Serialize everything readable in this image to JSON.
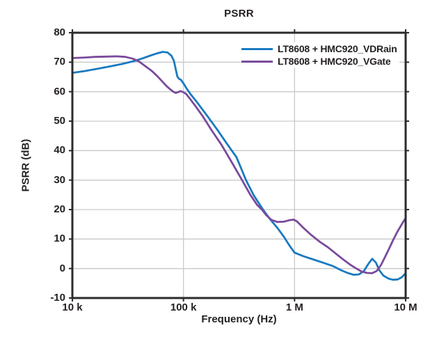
{
  "chart_data": {
    "type": "line",
    "title": "PSRR",
    "xlabel": "Frequency (Hz)",
    "ylabel": "PSRR (dB)",
    "x_scale": "log",
    "x_range": [
      10000,
      10000000
    ],
    "y_range": [
      -10,
      80
    ],
    "grid": true,
    "legend_position": "top-right-inside",
    "axis_color": "#2b2b2b",
    "grid_color": "#c9c9c9",
    "x_ticks": [
      {
        "value": 10000,
        "label": "10 k"
      },
      {
        "value": 100000,
        "label": "100 k"
      },
      {
        "value": 1000000,
        "label": "1 M"
      },
      {
        "value": 10000000,
        "label": "10 M"
      }
    ],
    "y_ticks": [
      {
        "value": 80,
        "label": "80"
      },
      {
        "value": 70,
        "label": "70"
      },
      {
        "value": 60,
        "label": "60"
      },
      {
        "value": 50,
        "label": "50"
      },
      {
        "value": 40,
        "label": "40"
      },
      {
        "value": 30,
        "label": "30"
      },
      {
        "value": 20,
        "label": "20"
      },
      {
        "value": 10,
        "label": "10"
      },
      {
        "value": 0,
        "label": "0"
      },
      {
        "value": -10,
        "label": "-10"
      }
    ],
    "series": [
      {
        "name": "LT8608 + HMC920_VDRain",
        "color": "#1a7ac0",
        "points": [
          [
            10000,
            66.4
          ],
          [
            13000,
            67.0
          ],
          [
            17000,
            67.8
          ],
          [
            22000,
            68.6
          ],
          [
            28000,
            69.4
          ],
          [
            35000,
            70.3
          ],
          [
            42000,
            71.2
          ],
          [
            50000,
            72.2
          ],
          [
            58000,
            73.0
          ],
          [
            65000,
            73.5
          ],
          [
            72000,
            73.3
          ],
          [
            78000,
            72.2
          ],
          [
            82000,
            70.5
          ],
          [
            85000,
            67.8
          ],
          [
            88000,
            65.2
          ],
          [
            91000,
            64.4
          ],
          [
            95000,
            64.0
          ],
          [
            100000,
            62.8
          ],
          [
            107000,
            61.0
          ],
          [
            115000,
            59.3
          ],
          [
            130000,
            56.8
          ],
          [
            160000,
            52.3
          ],
          [
            200000,
            47.3
          ],
          [
            250000,
            42.0
          ],
          [
            300000,
            37.8
          ],
          [
            366000,
            30.0
          ],
          [
            430000,
            24.8
          ],
          [
            520000,
            20.0
          ],
          [
            600000,
            16.8
          ],
          [
            700000,
            13.8
          ],
          [
            800000,
            10.8
          ],
          [
            900000,
            7.8
          ],
          [
            1000000,
            5.4
          ],
          [
            1200000,
            4.2
          ],
          [
            1500000,
            3.0
          ],
          [
            1800000,
            2.0
          ],
          [
            2200000,
            0.9
          ],
          [
            2600000,
            -0.5
          ],
          [
            3000000,
            -1.5
          ],
          [
            3400000,
            -2.1
          ],
          [
            3800000,
            -2.0
          ],
          [
            4200000,
            -0.9
          ],
          [
            4600000,
            1.5
          ],
          [
            5000000,
            3.3
          ],
          [
            5400000,
            2.0
          ],
          [
            5800000,
            -0.6
          ],
          [
            6300000,
            -2.4
          ],
          [
            7000000,
            -3.4
          ],
          [
            7700000,
            -3.8
          ],
          [
            8500000,
            -3.7
          ],
          [
            9200000,
            -3.0
          ],
          [
            10000000,
            -1.6
          ]
        ]
      },
      {
        "name": "LT8608 + HMC920_VGate",
        "color": "#7a4a9c",
        "points": [
          [
            10000,
            71.4
          ],
          [
            13000,
            71.6
          ],
          [
            16000,
            71.8
          ],
          [
            20000,
            71.9
          ],
          [
            25000,
            72.0
          ],
          [
            30000,
            71.8
          ],
          [
            35000,
            71.2
          ],
          [
            40000,
            70.2
          ],
          [
            46000,
            68.5
          ],
          [
            52000,
            67.0
          ],
          [
            58000,
            65.3
          ],
          [
            64000,
            63.6
          ],
          [
            70000,
            62.0
          ],
          [
            76000,
            60.8
          ],
          [
            81000,
            60.0
          ],
          [
            85000,
            59.6
          ],
          [
            89000,
            59.8
          ],
          [
            94000,
            60.2
          ],
          [
            100000,
            59.8
          ],
          [
            106000,
            59.2
          ],
          [
            115000,
            57.5
          ],
          [
            130000,
            54.8
          ],
          [
            150000,
            51.5
          ],
          [
            180000,
            46.8
          ],
          [
            220000,
            42.0
          ],
          [
            270000,
            36.3
          ],
          [
            337000,
            30.0
          ],
          [
            400000,
            25.0
          ],
          [
            460000,
            21.6
          ],
          [
            508000,
            20.0
          ],
          [
            560000,
            18.0
          ],
          [
            620000,
            16.5
          ],
          [
            700000,
            15.8
          ],
          [
            800000,
            15.9
          ],
          [
            900000,
            16.4
          ],
          [
            980000,
            16.6
          ],
          [
            1050000,
            16.0
          ],
          [
            1200000,
            13.8
          ],
          [
            1400000,
            11.5
          ],
          [
            1700000,
            9.0
          ],
          [
            2000000,
            7.2
          ],
          [
            2400000,
            4.8
          ],
          [
            2800000,
            2.8
          ],
          [
            3200000,
            1.2
          ],
          [
            3600000,
            0.0
          ],
          [
            4000000,
            -1.0
          ],
          [
            4500000,
            -1.5
          ],
          [
            5000000,
            -1.6
          ],
          [
            5500000,
            -0.8
          ],
          [
            6000000,
            1.2
          ],
          [
            6500000,
            3.8
          ],
          [
            7000000,
            6.3
          ],
          [
            7700000,
            9.6
          ],
          [
            8400000,
            12.4
          ],
          [
            9000000,
            14.3
          ],
          [
            9500000,
            15.8
          ],
          [
            10000000,
            17.1
          ]
        ]
      }
    ]
  }
}
